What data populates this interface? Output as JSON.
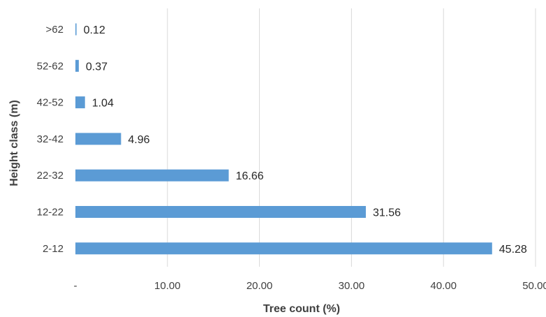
{
  "chart_data": {
    "type": "bar",
    "orientation": "horizontal",
    "categories": [
      ">62",
      "52-62",
      "42-52",
      "32-42",
      "22-32",
      "12-22",
      "2-12"
    ],
    "values": [
      0.12,
      0.37,
      1.04,
      4.96,
      16.66,
      31.56,
      45.28
    ],
    "data_labels": [
      "0.12",
      "0.37",
      "1.04",
      "4.96",
      "16.66",
      "31.56",
      "45.28"
    ],
    "xlabel": "Tree count (%)",
    "ylabel": "Height class (m)",
    "xlim": [
      0,
      50
    ],
    "xticks": [
      0,
      10,
      20,
      30,
      40,
      50
    ],
    "xtick_labels": [
      "-",
      "10.00",
      "20.00",
      "30.00",
      "40.00",
      "50.00"
    ],
    "grid": "vertical",
    "legend": "none",
    "bar_color": "#5b9bd5"
  }
}
